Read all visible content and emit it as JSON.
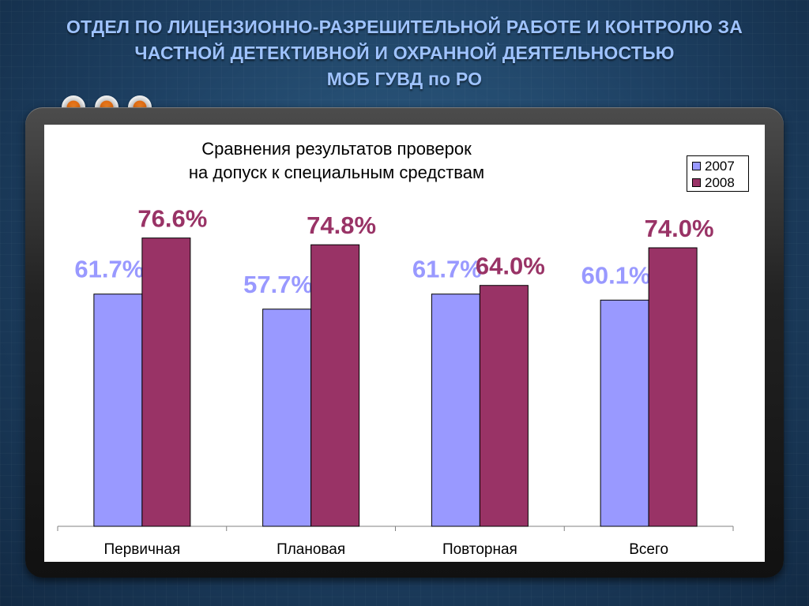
{
  "header": {
    "line1": "ОТДЕЛ ПО ЛИЦЕНЗИОННО-РАЗРЕШИТЕЛЬНОЙ РАБОТЕ И КОНТРОЛЮ ЗА",
    "line2": "ЧАСТНОЙ ДЕТЕКТИВНОЙ И ОХРАННОЙ ДЕЯТЕЛЬНОСТЬЮ",
    "line3": "МОБ ГУВД по РО"
  },
  "chart_data": {
    "type": "bar",
    "title_line1": "Сравнения результатов проверок",
    "title_line2": "на допуск к специальным средствам",
    "categories": [
      "Первичная",
      "Плановая",
      "Повторная",
      "Всего"
    ],
    "series": [
      {
        "name": "2007",
        "color": "#9999ff",
        "label_color": "#9999ff",
        "values": [
          61.7,
          57.7,
          61.7,
          60.1
        ],
        "labels": [
          "61.7%",
          "57.7%",
          "61.7%",
          "60.1%"
        ]
      },
      {
        "name": "2008",
        "color": "#993366",
        "label_color": "#993366",
        "values": [
          76.6,
          74.8,
          64.0,
          74.0
        ],
        "labels": [
          "76.6%",
          "74.8%",
          "64.0%",
          "74.0%"
        ]
      }
    ],
    "ylim": [
      0,
      100
    ],
    "grid": false,
    "legend_position": "top-right"
  }
}
